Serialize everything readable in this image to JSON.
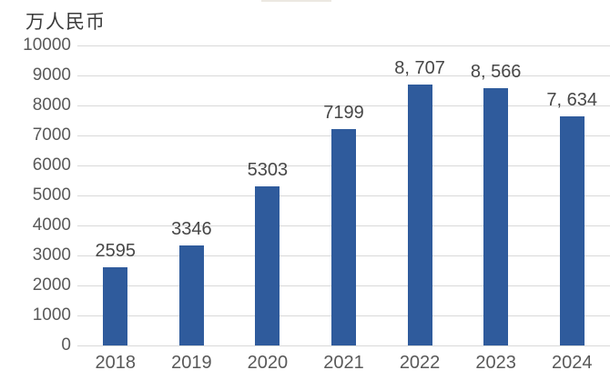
{
  "chart_data": {
    "type": "bar",
    "unit_label": "万人民币",
    "categories": [
      "2018",
      "2019",
      "2020",
      "2021",
      "2022",
      "2023",
      "2024"
    ],
    "values": [
      2595,
      3346,
      5303,
      7199,
      8707,
      8566,
      7634
    ],
    "data_labels": [
      "2595",
      "3346",
      "5303",
      "7199",
      "8, 707",
      "8, 566",
      "7, 634"
    ],
    "y_ticks": [
      0,
      1000,
      2000,
      3000,
      4000,
      5000,
      6000,
      7000,
      8000,
      9000,
      10000
    ],
    "y_tick_labels": [
      "0",
      "1000",
      "2000",
      "3000",
      "4000",
      "5000",
      "6000",
      "7000",
      "8000",
      "9000",
      "10000"
    ],
    "ylim": [
      0,
      10000
    ],
    "grid": "horizontal",
    "legend": "none",
    "bar_color": "#2f5b9c",
    "gridline_color": "#d9d9d9",
    "tick_label_color": "#595959",
    "data_label_color": "#474747",
    "background_color": "#ffffff"
  }
}
